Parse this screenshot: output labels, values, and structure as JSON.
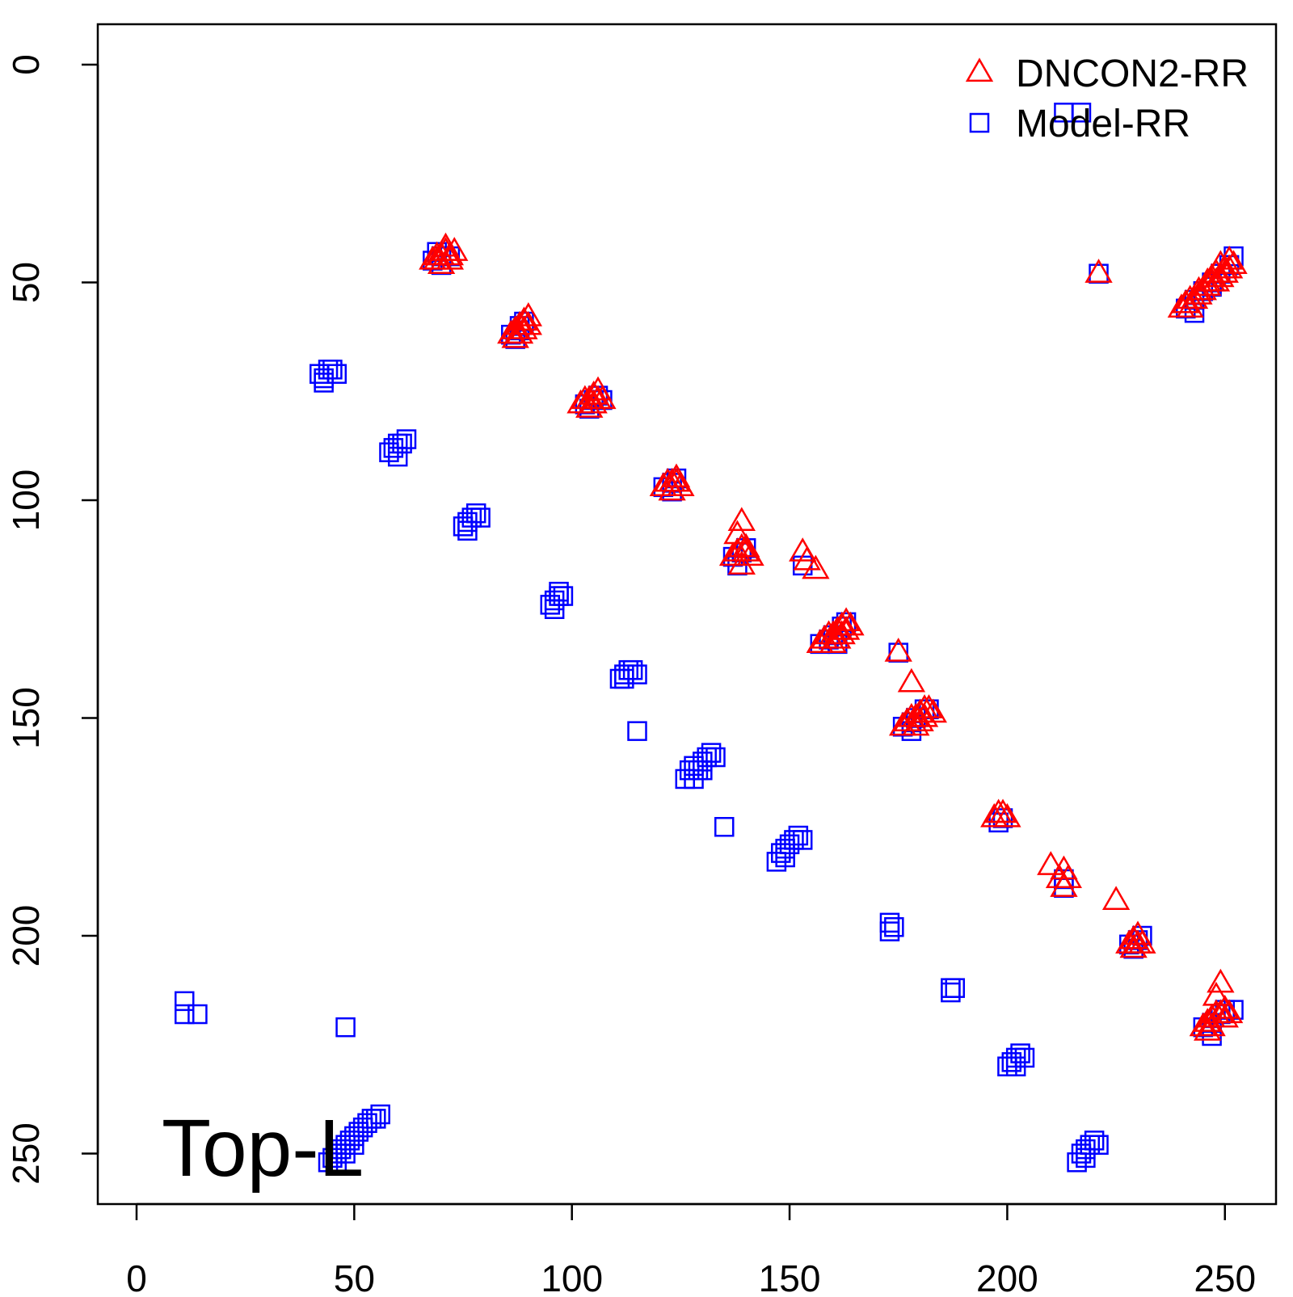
{
  "chart_data": {
    "type": "scatter",
    "title": "",
    "xlabel": "",
    "ylabel": "",
    "annotation": "Top-L",
    "xlim": [
      -9,
      262
    ],
    "ylim": [
      262,
      -9
    ],
    "y_reversed": true,
    "x_ticks": [
      0,
      50,
      100,
      150,
      200,
      250
    ],
    "y_ticks": [
      0,
      50,
      100,
      150,
      200,
      250
    ],
    "grid": false,
    "legend_position": "top-right",
    "series": [
      {
        "name": "DNCON2-RR",
        "marker": "triangle",
        "color": "#ff0000",
        "points": [
          [
            68,
            45
          ],
          [
            69,
            44
          ],
          [
            70,
            44
          ],
          [
            71,
            43
          ],
          [
            72,
            44
          ],
          [
            73,
            43
          ],
          [
            70,
            46
          ],
          [
            71,
            42
          ],
          [
            72,
            45
          ],
          [
            69,
            45
          ],
          [
            86,
            62
          ],
          [
            87,
            61
          ],
          [
            88,
            60
          ],
          [
            89,
            59
          ],
          [
            90,
            60
          ],
          [
            88,
            62
          ],
          [
            87,
            63
          ],
          [
            89,
            61
          ],
          [
            90,
            58
          ],
          [
            102,
            78
          ],
          [
            103,
            77
          ],
          [
            104,
            77
          ],
          [
            105,
            76
          ],
          [
            106,
            75
          ],
          [
            107,
            77
          ],
          [
            104,
            79
          ],
          [
            105,
            78
          ],
          [
            106,
            77
          ],
          [
            121,
            97
          ],
          [
            122,
            96
          ],
          [
            123,
            96
          ],
          [
            124,
            95
          ],
          [
            125,
            97
          ],
          [
            123,
            98
          ],
          [
            124,
            96
          ],
          [
            137,
            113
          ],
          [
            138,
            112
          ],
          [
            139,
            111
          ],
          [
            140,
            112
          ],
          [
            141,
            113
          ],
          [
            139,
            115
          ],
          [
            138,
            108
          ],
          [
            139,
            105
          ],
          [
            140,
            111
          ],
          [
            153,
            112
          ],
          [
            154,
            114
          ],
          [
            156,
            116
          ],
          [
            157,
            133
          ],
          [
            158,
            132
          ],
          [
            159,
            131
          ],
          [
            160,
            131
          ],
          [
            161,
            130
          ],
          [
            162,
            129
          ],
          [
            163,
            128
          ],
          [
            164,
            129
          ],
          [
            162,
            131
          ],
          [
            160,
            133
          ],
          [
            161,
            132
          ],
          [
            163,
            130
          ],
          [
            175,
            135
          ],
          [
            178,
            142
          ],
          [
            176,
            152
          ],
          [
            177,
            151
          ],
          [
            178,
            150
          ],
          [
            179,
            150
          ],
          [
            180,
            149
          ],
          [
            181,
            148
          ],
          [
            182,
            148
          ],
          [
            183,
            149
          ],
          [
            180,
            151
          ],
          [
            179,
            152
          ],
          [
            181,
            150
          ],
          [
            197,
            173
          ],
          [
            198,
            172
          ],
          [
            199,
            172
          ],
          [
            200,
            173
          ],
          [
            210,
            184
          ],
          [
            212,
            187
          ],
          [
            213,
            185
          ],
          [
            214,
            187
          ],
          [
            213,
            189
          ],
          [
            225,
            192
          ],
          [
            228,
            202
          ],
          [
            229,
            201
          ],
          [
            230,
            200
          ],
          [
            231,
            202
          ],
          [
            229,
            203
          ],
          [
            230,
            202
          ],
          [
            221,
            48
          ],
          [
            240,
            56
          ],
          [
            241,
            55
          ],
          [
            242,
            54
          ],
          [
            243,
            54
          ],
          [
            244,
            53
          ],
          [
            245,
            52
          ],
          [
            246,
            51
          ],
          [
            247,
            50
          ],
          [
            248,
            50
          ],
          [
            249,
            49
          ],
          [
            250,
            48
          ],
          [
            251,
            47
          ],
          [
            252,
            46
          ],
          [
            251,
            45
          ],
          [
            250,
            47
          ],
          [
            248,
            48
          ],
          [
            246,
            50
          ],
          [
            244,
            52
          ],
          [
            242,
            56
          ],
          [
            249,
            46
          ],
          [
            247,
            49
          ],
          [
            245,
            221
          ],
          [
            246,
            220
          ],
          [
            247,
            219
          ],
          [
            248,
            218
          ],
          [
            249,
            218
          ],
          [
            250,
            217
          ],
          [
            251,
            218
          ],
          [
            248,
            214
          ],
          [
            249,
            211
          ],
          [
            247,
            221
          ],
          [
            246,
            222
          ],
          [
            250,
            219
          ]
        ]
      },
      {
        "name": "Model-RR",
        "marker": "square",
        "color": "#0000ff",
        "points": [
          [
            68,
            45
          ],
          [
            70,
            44
          ],
          [
            72,
            44
          ],
          [
            70,
            46
          ],
          [
            69,
            43
          ],
          [
            86,
            62
          ],
          [
            88,
            61
          ],
          [
            89,
            59
          ],
          [
            87,
            63
          ],
          [
            88,
            60
          ],
          [
            103,
            78
          ],
          [
            105,
            77
          ],
          [
            106,
            76
          ],
          [
            104,
            79
          ],
          [
            107,
            77
          ],
          [
            121,
            97
          ],
          [
            123,
            96
          ],
          [
            124,
            95
          ],
          [
            123,
            98
          ],
          [
            137,
            113
          ],
          [
            139,
            112
          ],
          [
            140,
            111
          ],
          [
            138,
            115
          ],
          [
            153,
            115
          ],
          [
            157,
            133
          ],
          [
            159,
            132
          ],
          [
            160,
            131
          ],
          [
            162,
            129
          ],
          [
            163,
            128
          ],
          [
            161,
            133
          ],
          [
            175,
            135
          ],
          [
            176,
            152
          ],
          [
            178,
            151
          ],
          [
            179,
            150
          ],
          [
            181,
            148
          ],
          [
            182,
            148
          ],
          [
            178,
            153
          ],
          [
            198,
            174
          ],
          [
            199,
            173
          ],
          [
            213,
            187
          ],
          [
            213,
            189
          ],
          [
            228,
            202
          ],
          [
            230,
            201
          ],
          [
            231,
            200
          ],
          [
            229,
            203
          ],
          [
            213,
            11
          ],
          [
            217,
            11
          ],
          [
            221,
            48
          ],
          [
            241,
            56
          ],
          [
            243,
            54
          ],
          [
            245,
            52
          ],
          [
            247,
            50
          ],
          [
            249,
            48
          ],
          [
            251,
            46
          ],
          [
            252,
            44
          ],
          [
            243,
            57
          ],
          [
            247,
            51
          ],
          [
            245,
            221
          ],
          [
            247,
            220
          ],
          [
            249,
            218
          ],
          [
            250,
            217
          ],
          [
            252,
            217
          ],
          [
            247,
            223
          ],
          [
            42,
            71
          ],
          [
            43,
            72
          ],
          [
            44,
            70
          ],
          [
            45,
            70
          ],
          [
            46,
            71
          ],
          [
            43,
            73
          ],
          [
            58,
            89
          ],
          [
            59,
            88
          ],
          [
            60,
            87
          ],
          [
            61,
            87
          ],
          [
            62,
            86
          ],
          [
            60,
            90
          ],
          [
            75,
            106
          ],
          [
            76,
            105
          ],
          [
            77,
            104
          ],
          [
            78,
            103
          ],
          [
            79,
            104
          ],
          [
            76,
            107
          ],
          [
            95,
            124
          ],
          [
            96,
            123
          ],
          [
            97,
            122
          ],
          [
            98,
            122
          ],
          [
            96,
            125
          ],
          [
            97,
            121
          ],
          [
            111,
            141
          ],
          [
            112,
            140
          ],
          [
            113,
            139
          ],
          [
            114,
            139
          ],
          [
            115,
            140
          ],
          [
            112,
            141
          ],
          [
            115,
            153
          ],
          [
            126,
            164
          ],
          [
            127,
            162
          ],
          [
            128,
            161
          ],
          [
            129,
            162
          ],
          [
            130,
            160
          ],
          [
            131,
            159
          ],
          [
            132,
            158
          ],
          [
            133,
            159
          ],
          [
            128,
            164
          ],
          [
            130,
            162
          ],
          [
            135,
            175
          ],
          [
            147,
            183
          ],
          [
            148,
            181
          ],
          [
            149,
            180
          ],
          [
            150,
            179
          ],
          [
            151,
            178
          ],
          [
            152,
            177
          ],
          [
            153,
            178
          ],
          [
            149,
            182
          ],
          [
            173,
            197
          ],
          [
            173,
            199
          ],
          [
            174,
            198
          ],
          [
            187,
            212
          ],
          [
            188,
            212
          ],
          [
            187,
            213
          ],
          [
            200,
            230
          ],
          [
            201,
            229
          ],
          [
            202,
            228
          ],
          [
            203,
            227
          ],
          [
            204,
            228
          ],
          [
            202,
            230
          ],
          [
            216,
            252
          ],
          [
            217,
            250
          ],
          [
            218,
            249
          ],
          [
            219,
            248
          ],
          [
            220,
            247
          ],
          [
            221,
            248
          ],
          [
            218,
            251
          ],
          [
            11,
            215
          ],
          [
            11,
            218
          ],
          [
            14,
            218
          ],
          [
            48,
            221
          ],
          [
            44,
            252
          ],
          [
            45,
            251
          ],
          [
            46,
            250
          ],
          [
            47,
            249
          ],
          [
            48,
            248
          ],
          [
            49,
            247
          ],
          [
            50,
            246
          ],
          [
            51,
            245
          ],
          [
            52,
            244
          ],
          [
            53,
            243
          ],
          [
            54,
            242
          ],
          [
            55,
            242
          ],
          [
            56,
            241
          ],
          [
            50,
            248
          ],
          [
            48,
            250
          ],
          [
            46,
            252
          ]
        ]
      }
    ]
  }
}
